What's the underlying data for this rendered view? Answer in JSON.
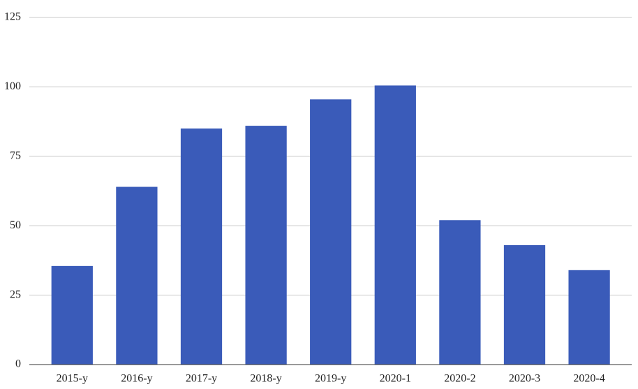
{
  "chart_data": {
    "type": "bar",
    "categories": [
      "2015-y",
      "2016-y",
      "2017-y",
      "2018-y",
      "2019-y",
      "2020-1",
      "2020-2",
      "2020-3",
      "2020-4"
    ],
    "values": [
      35.5,
      64,
      85,
      86,
      95.5,
      100.5,
      52,
      43,
      34
    ],
    "color": "#3a5bb9",
    "ylim": [
      0,
      125
    ],
    "yticks": [
      0,
      25,
      50,
      75,
      100,
      125
    ],
    "grid": true
  }
}
